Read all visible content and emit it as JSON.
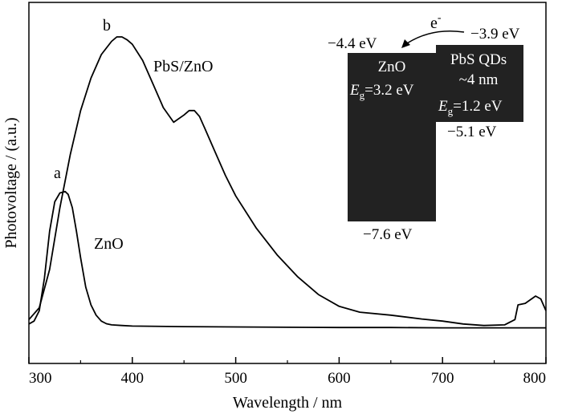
{
  "chart_data": {
    "type": "line",
    "xlabel": "Wavelength / nm",
    "ylabel": "Photovoltage / (a.u.)",
    "xlim": [
      300,
      800
    ],
    "ylim": [
      0,
      100
    ],
    "xticks": [
      "300",
      "400",
      "500",
      "600",
      "700",
      "800"
    ],
    "y_tick_labels": "none",
    "grid": false,
    "series": [
      {
        "name": "ZnO",
        "curve_label": "a",
        "x": [
          300,
          305,
          310,
          315,
          320,
          325,
          330,
          335,
          338,
          342,
          346,
          350,
          355,
          360,
          365,
          370,
          375,
          380,
          390,
          400,
          450,
          500,
          550,
          600,
          650,
          700,
          750,
          800
        ],
        "y": [
          2.5,
          3.5,
          7,
          18,
          34,
          44,
          47,
          47.5,
          46.5,
          42,
          34,
          25,
          15,
          9,
          5.5,
          3.5,
          2.6,
          2.2,
          2.0,
          1.8,
          1.6,
          1.5,
          1.4,
          1.3,
          1.3,
          1.2,
          1.2,
          1.2
        ]
      },
      {
        "name": "PbS/ZnO",
        "curve_label": "b",
        "x": [
          300,
          310,
          320,
          330,
          340,
          350,
          360,
          370,
          380,
          385,
          390,
          395,
          400,
          410,
          420,
          430,
          440,
          450,
          455,
          460,
          465,
          470,
          480,
          490,
          500,
          520,
          540,
          560,
          580,
          600,
          620,
          650,
          680,
          700,
          720,
          740,
          760,
          770,
          773,
          780,
          790,
          795,
          800
        ],
        "y": [
          4,
          8,
          21,
          42,
          60,
          75,
          86,
          94,
          98.5,
          100,
          100,
          99,
          97.5,
          92,
          84,
          76,
          71,
          73.5,
          75,
          75,
          73,
          69,
          61,
          53,
          46,
          35,
          26,
          18.5,
          12.5,
          8.5,
          6.5,
          5.5,
          4.2,
          3.5,
          2.5,
          2.0,
          2.2,
          4,
          9,
          9.5,
          12,
          11,
          7
        ]
      }
    ],
    "annotations": {
      "curve_a_label": "a",
      "curve_b_label": "b",
      "zno_series_label": "ZnO",
      "pbs_series_label": "PbS/ZnO",
      "electron_symbol": "e",
      "electron_charge": "-",
      "zno_cb_level": "−4.4 eV",
      "zno_vb_level": "−7.6 eV",
      "pbs_cb_level": "−3.9 eV",
      "pbs_vb_level": "−5.1 eV",
      "zno_box_title": "ZnO",
      "zno_eg_symbol": "E",
      "zno_eg_sub": "g",
      "zno_eg_value": "=3.2 eV",
      "pbs_box_title": "PbS QDs",
      "pbs_box_size": "~4 nm",
      "pbs_eg_symbol": "E",
      "pbs_eg_sub": "g",
      "pbs_eg_value": "=1.2 eV"
    },
    "colors": {
      "line": "#000000",
      "band_fill": "#222222",
      "band_text": "#ffffff"
    }
  }
}
